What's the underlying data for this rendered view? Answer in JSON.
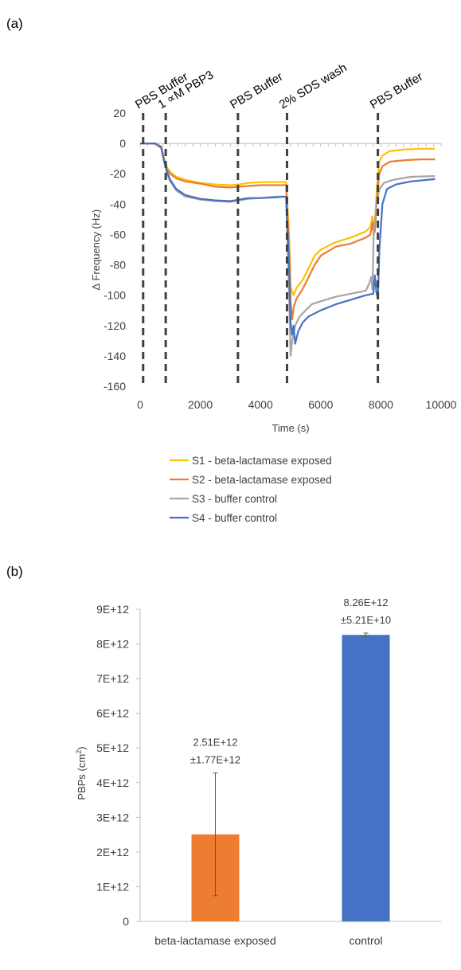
{
  "panel_a_label": "(a)",
  "panel_b_label": "(b)",
  "chart_data": [
    {
      "type": "line",
      "xlabel": "Time (s)",
      "ylabel": "∆ Frequency (Hz)",
      "xlim": [
        0,
        10000
      ],
      "ylim": [
        -160,
        20
      ],
      "x_ticks": [
        0,
        2000,
        4000,
        6000,
        8000,
        10000
      ],
      "y_ticks": [
        20,
        0,
        -20,
        -40,
        -60,
        -80,
        -100,
        -120,
        -140,
        -160
      ],
      "events": [
        {
          "label": "PBS Buffer",
          "x": 100
        },
        {
          "label": "1 ∝M PBP3",
          "x": 850
        },
        {
          "label": "PBS Buffer",
          "x": 3250
        },
        {
          "label": "2% SDS wash",
          "x": 4880
        },
        {
          "label": "PBS Buffer",
          "x": 7900
        }
      ],
      "legend_position": "bottom",
      "series": [
        {
          "name": "S1 - beta-lactamase exposed",
          "color": "#FFC000",
          "points": [
            [
              0,
              0
            ],
            [
              500,
              0
            ],
            [
              700,
              -2
            ],
            [
              800,
              -10
            ],
            [
              900,
              -16
            ],
            [
              1000,
              -19
            ],
            [
              1200,
              -22
            ],
            [
              1500,
              -24
            ],
            [
              2000,
              -26
            ],
            [
              2500,
              -27
            ],
            [
              3000,
              -27.5
            ],
            [
              3300,
              -27
            ],
            [
              3600,
              -26
            ],
            [
              4000,
              -25.5
            ],
            [
              4500,
              -25.5
            ],
            [
              4850,
              -25.5
            ],
            [
              4950,
              -60
            ],
            [
              5000,
              -95
            ],
            [
              5100,
              -100
            ],
            [
              5200,
              -95
            ],
            [
              5400,
              -90
            ],
            [
              5600,
              -82
            ],
            [
              5800,
              -74
            ],
            [
              6000,
              -70
            ],
            [
              6500,
              -65
            ],
            [
              7000,
              -62
            ],
            [
              7500,
              -58
            ],
            [
              7650,
              -55
            ],
            [
              7720,
              -48
            ],
            [
              7760,
              -56
            ],
            [
              7800,
              -54
            ],
            [
              7870,
              -28
            ],
            [
              7950,
              -12
            ],
            [
              8050,
              -8
            ],
            [
              8300,
              -5
            ],
            [
              8800,
              -4
            ],
            [
              9300,
              -3.5
            ],
            [
              9800,
              -3.5
            ]
          ]
        },
        {
          "name": "S2 - beta-lactamase exposed",
          "color": "#ED7D31",
          "points": [
            [
              0,
              0
            ],
            [
              500,
              0
            ],
            [
              700,
              -2
            ],
            [
              800,
              -11
            ],
            [
              900,
              -17
            ],
            [
              1000,
              -20
            ],
            [
              1200,
              -23
            ],
            [
              1500,
              -25
            ],
            [
              2000,
              -26.5
            ],
            [
              2500,
              -28.5
            ],
            [
              3000,
              -29
            ],
            [
              3300,
              -28.5
            ],
            [
              3600,
              -28
            ],
            [
              4000,
              -27.5
            ],
            [
              4500,
              -27.5
            ],
            [
              4850,
              -27.5
            ],
            [
              4950,
              -70
            ],
            [
              5000,
              -105
            ],
            [
              5050,
              -116
            ],
            [
              5100,
              -108
            ],
            [
              5200,
              -102
            ],
            [
              5400,
              -96
            ],
            [
              5600,
              -88
            ],
            [
              5800,
              -80
            ],
            [
              6000,
              -74
            ],
            [
              6500,
              -68
            ],
            [
              7000,
              -66
            ],
            [
              7500,
              -62
            ],
            [
              7650,
              -60
            ],
            [
              7720,
              -52
            ],
            [
              7760,
              -60
            ],
            [
              7800,
              -58
            ],
            [
              7870,
              -35
            ],
            [
              7950,
              -20
            ],
            [
              8050,
              -15
            ],
            [
              8300,
              -12
            ],
            [
              8800,
              -11
            ],
            [
              9300,
              -10.5
            ],
            [
              9800,
              -10.5
            ]
          ]
        },
        {
          "name": "S3 - buffer control",
          "color": "#A5A5A5",
          "points": [
            [
              0,
              0
            ],
            [
              500,
              0
            ],
            [
              700,
              -3
            ],
            [
              800,
              -12
            ],
            [
              900,
              -20
            ],
            [
              1000,
              -25
            ],
            [
              1200,
              -31
            ],
            [
              1500,
              -35
            ],
            [
              2000,
              -37
            ],
            [
              2500,
              -38
            ],
            [
              3000,
              -38.5
            ],
            [
              3300,
              -37.5
            ],
            [
              3600,
              -36.5
            ],
            [
              4000,
              -36
            ],
            [
              4500,
              -35
            ],
            [
              4850,
              -35
            ],
            [
              4950,
              -100
            ],
            [
              5000,
              -140
            ],
            [
              5050,
              -130
            ],
            [
              5150,
              -120
            ],
            [
              5300,
              -114
            ],
            [
              5500,
              -110
            ],
            [
              5700,
              -106
            ],
            [
              6000,
              -104
            ],
            [
              6500,
              -101
            ],
            [
              7000,
              -99
            ],
            [
              7500,
              -97
            ],
            [
              7620,
              -92
            ],
            [
              7680,
              -88
            ],
            [
              7720,
              -96
            ],
            [
              7760,
              -60
            ],
            [
              7800,
              -50
            ],
            [
              7870,
              -38
            ],
            [
              7950,
              -30
            ],
            [
              8100,
              -26
            ],
            [
              8400,
              -24
            ],
            [
              9000,
              -22
            ],
            [
              9800,
              -21.5
            ]
          ]
        },
        {
          "name": "S4 - buffer control",
          "color": "#4472C4",
          "points": [
            [
              0,
              0
            ],
            [
              500,
              0
            ],
            [
              700,
              -3
            ],
            [
              800,
              -12
            ],
            [
              900,
              -19
            ],
            [
              1000,
              -24
            ],
            [
              1200,
              -30
            ],
            [
              1500,
              -34
            ],
            [
              2000,
              -36.5
            ],
            [
              2500,
              -37.5
            ],
            [
              3000,
              -38
            ],
            [
              3300,
              -37
            ],
            [
              3600,
              -36
            ],
            [
              4000,
              -36
            ],
            [
              4500,
              -35.5
            ],
            [
              4850,
              -35
            ],
            [
              4950,
              -80
            ],
            [
              5000,
              -118
            ],
            [
              5050,
              -126
            ],
            [
              5100,
              -120
            ],
            [
              5150,
              -132
            ],
            [
              5250,
              -124
            ],
            [
              5400,
              -118
            ],
            [
              5600,
              -114
            ],
            [
              6000,
              -110
            ],
            [
              6500,
              -106
            ],
            [
              7000,
              -103
            ],
            [
              7500,
              -100
            ],
            [
              7750,
              -99
            ],
            [
              7800,
              -87
            ],
            [
              7850,
              -98
            ],
            [
              7900,
              -102
            ],
            [
              7950,
              -70
            ],
            [
              8050,
              -40
            ],
            [
              8200,
              -30
            ],
            [
              8500,
              -27
            ],
            [
              9000,
              -25
            ],
            [
              9800,
              -23.5
            ]
          ]
        }
      ]
    },
    {
      "type": "bar",
      "ylabel_text": "PBPs (cm",
      "ylabel_sup": "2",
      "ylabel_close": ")",
      "ylim": [
        0,
        9000000000000
      ],
      "y_ticks": [
        0,
        1000000000000,
        2000000000000,
        3000000000000,
        4000000000000,
        5000000000000,
        6000000000000,
        7000000000000,
        8000000000000,
        9000000000000
      ],
      "y_tick_labels": [
        "0",
        "1E+12",
        "2E+12",
        "3E+12",
        "4E+12",
        "5E+12",
        "6E+12",
        "7E+12",
        "8E+12",
        "9E+12"
      ],
      "categories": [
        "beta-lactamase exposed",
        "control"
      ],
      "values": [
        2510000000000,
        8260000000000
      ],
      "errors": [
        1770000000000,
        52100000000
      ],
      "colors": [
        "#ED7D31",
        "#4472C4"
      ],
      "data_labels": [
        [
          "2.51E+12",
          "±1.77E+12"
        ],
        [
          "8.26E+12",
          "±5.21E+10"
        ]
      ]
    }
  ]
}
